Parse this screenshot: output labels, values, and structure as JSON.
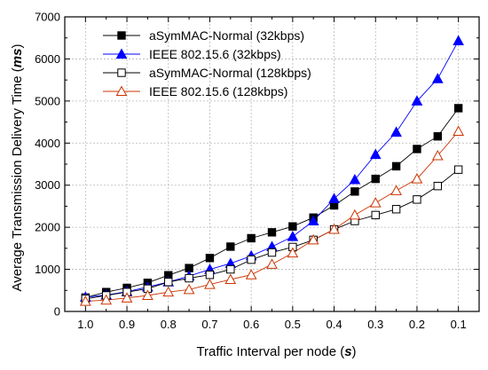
{
  "chart_data": {
    "type": "line",
    "title": "",
    "xlabel": "Traffic Interval per node (s)",
    "xlabel_parts": {
      "prefix": "Traffic Interval per node (",
      "italic": "s",
      "suffix": ")"
    },
    "ylabel": "Average Transmission Delivery Time (ms)",
    "ylabel_parts": {
      "prefix": "Average Transmission Delivery Time (",
      "italic": "ms",
      "suffix": ")"
    },
    "x_reversed": true,
    "xlim": [
      1.05,
      0.05
    ],
    "ylim": [
      0,
      7000
    ],
    "x_ticks": [
      "1.0",
      "0.9",
      "0.8",
      "0.7",
      "0.6",
      "0.5",
      "0.4",
      "0.3",
      "0.2",
      "0.1"
    ],
    "y_ticks": [
      "0",
      "1000",
      "2000",
      "3000",
      "4000",
      "5000",
      "6000",
      "7000"
    ],
    "grid": true,
    "legend_position": "top-left",
    "x": [
      1.0,
      0.95,
      0.9,
      0.85,
      0.8,
      0.75,
      0.7,
      0.65,
      0.6,
      0.55,
      0.5,
      0.45,
      0.4,
      0.35,
      0.3,
      0.25,
      0.2,
      0.15,
      0.1
    ],
    "series": [
      {
        "name": "aSymMAC-Normal (32kbps)",
        "marker": "square-filled",
        "color": "#000000",
        "values": [
          330,
          460,
          560,
          680,
          860,
          1030,
          1270,
          1540,
          1740,
          1880,
          2020,
          2230,
          2520,
          2850,
          3150,
          3450,
          3860,
          4160,
          4830
        ]
      },
      {
        "name": "IEEE 802.15.6 (32kbps)",
        "marker": "triangle-filled",
        "color": "#0000ff",
        "values": [
          340,
          390,
          470,
          580,
          700,
          840,
          1000,
          1140,
          1320,
          1540,
          1780,
          2150,
          2680,
          3130,
          3730,
          4260,
          5000,
          5530,
          6430
        ]
      },
      {
        "name": "aSymMAC-Normal (128kbps)",
        "marker": "square-open",
        "color": "#000000",
        "values": [
          300,
          380,
          460,
          540,
          700,
          790,
          870,
          1000,
          1230,
          1400,
          1530,
          1700,
          1950,
          2150,
          2290,
          2430,
          2660,
          2980,
          3370
        ]
      },
      {
        "name": "IEEE 802.15.6 (128kbps)",
        "marker": "triangle-open",
        "color": "#cc3300",
        "values": [
          240,
          270,
          320,
          380,
          460,
          520,
          640,
          760,
          870,
          1120,
          1390,
          1700,
          1950,
          2290,
          2580,
          2870,
          3150,
          3700,
          4280
        ]
      }
    ]
  }
}
